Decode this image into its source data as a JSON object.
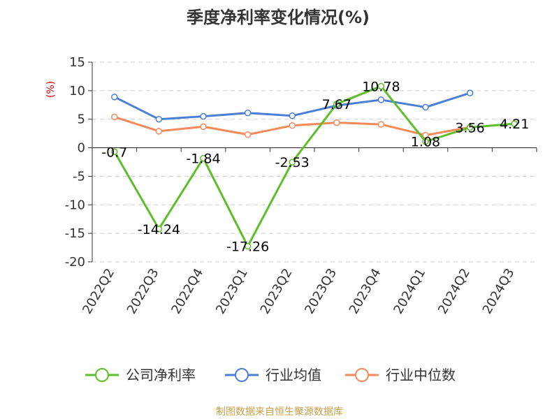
{
  "chart_data": {
    "type": "line",
    "title": "季度净利率变化情况(%)",
    "ylabel": "(%)",
    "xlabel": "",
    "categories": [
      "2022Q2",
      "2022Q3",
      "2022Q4",
      "2023Q1",
      "2023Q2",
      "2023Q3",
      "2023Q4",
      "2024Q1",
      "2024Q2",
      "2024Q3"
    ],
    "ylim": [
      -20,
      15
    ],
    "yticks": [
      15,
      10,
      5,
      0,
      -5,
      -10,
      -15,
      -20
    ],
    "grid": true,
    "legend_position": "bottom",
    "series": [
      {
        "name": "公司净利率",
        "color": "#5cbf2a",
        "values": [
          -0.7,
          -14.24,
          -1.84,
          -17.26,
          -2.53,
          7.67,
          10.78,
          1.08,
          3.56,
          4.21
        ],
        "labels": [
          "-0.7",
          "-14.24",
          "-1.84",
          "-17.26",
          "-2.53",
          "7.67",
          "10.78",
          "1.08",
          "3.56",
          "4.21"
        ]
      },
      {
        "name": "行业均值",
        "color": "#4a7fd6",
        "values": [
          8.9,
          5.0,
          5.5,
          6.1,
          5.6,
          7.4,
          8.4,
          7.1,
          9.6,
          null
        ]
      },
      {
        "name": "行业中位数",
        "color": "#f5895a",
        "values": [
          5.4,
          2.9,
          3.7,
          2.3,
          3.9,
          4.4,
          4.1,
          2.2,
          3.6,
          null
        ]
      }
    ]
  },
  "footer": {
    "source": "制图数据来自恒生聚源数据库"
  }
}
